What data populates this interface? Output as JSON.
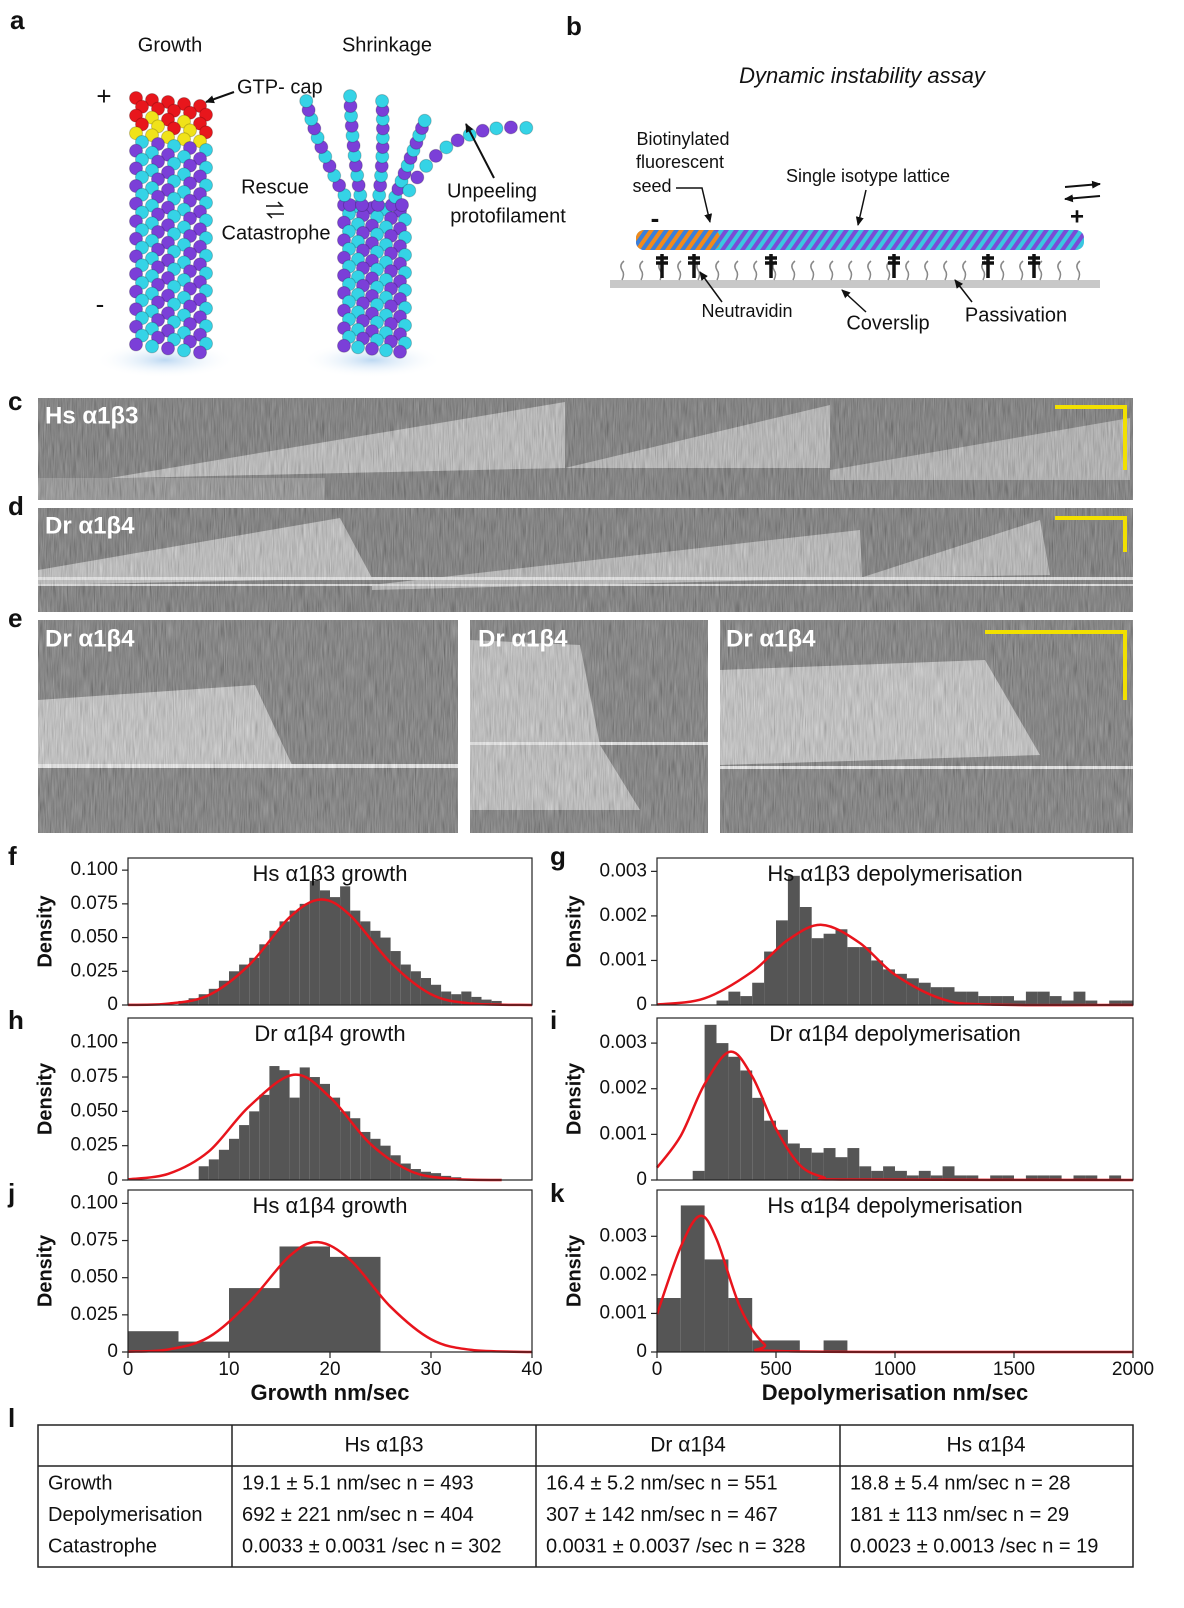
{
  "panel_labels": [
    "a",
    "b",
    "c",
    "d",
    "e",
    "f",
    "g",
    "h",
    "i",
    "j",
    "k",
    "l"
  ],
  "diagram_a": {
    "growth": "Growth",
    "shrinkage": "Shrinkage",
    "plus": "+",
    "minus": "-",
    "gtp_cap": "GTP- cap",
    "rescue": "Rescue",
    "catastrophe": "Catastrophe",
    "unpeeling": "Unpeeling",
    "protofilament": "protofilament"
  },
  "diagram_b": {
    "title": "Dynamic instability assay",
    "seed_label": [
      "Biotinylated",
      "fluorescent",
      "seed"
    ],
    "lattice": "Single isotype lattice",
    "minus": "-",
    "plus": "+",
    "neutravidin": "Neutravidin",
    "coverslip": "Coverslip",
    "passivation": "Passivation"
  },
  "kymographs": [
    "Hs α1β3",
    "Dr α1β4",
    "Dr α1β4",
    "Dr α1β4",
    "Dr α1β4"
  ],
  "chart_data": [
    {
      "type": "histogram",
      "title": "Hs α1β3 growth",
      "ylabel": "Density",
      "color": "#555555",
      "xlim": [
        0,
        40
      ],
      "ylim": [
        0,
        0.109
      ],
      "yticks": [
        0,
        0.025,
        {
          "value": 0.05,
          "label": "0.050"
        },
        0.075,
        {
          "value": 0.1,
          "label": "0.100"
        }
      ],
      "bins": [
        5,
        6,
        7,
        8,
        9,
        10,
        11,
        12,
        13,
        14,
        15,
        16,
        17,
        18,
        19,
        20,
        21,
        22,
        23,
        24,
        25,
        26,
        27,
        28,
        29,
        30,
        31,
        32,
        33,
        34,
        35,
        36,
        37
      ],
      "values": [
        0.003,
        0.005,
        0.008,
        0.012,
        0.018,
        0.025,
        0.03,
        0.035,
        0.045,
        0.055,
        0.062,
        0.07,
        0.075,
        0.092,
        0.085,
        0.08,
        0.088,
        0.07,
        0.062,
        0.055,
        0.05,
        0.04,
        0.03,
        0.025,
        0.02,
        0.015,
        0.01,
        0.008,
        0.01,
        0.006,
        0.004,
        0.003
      ],
      "curve": {
        "color": "#e8141c",
        "x": [
          0,
          4,
          8,
          12,
          16,
          19.1,
          22,
          26,
          30,
          34,
          40
        ],
        "values": [
          0.0001,
          0.001,
          0.0073,
          0.0297,
          0.065,
          0.0782,
          0.0665,
          0.0314,
          0.008,
          0.0011,
          0.0
        ]
      }
    },
    {
      "type": "histogram",
      "title": "Hs α1β3 depolymerisation",
      "ylabel": "Density",
      "color": "#555555",
      "xlim": [
        0,
        2000
      ],
      "ylim": [
        0,
        0.0033
      ],
      "yticks": [
        0,
        0.001,
        0.002,
        0.003
      ],
      "bins": [
        250,
        300,
        350,
        400,
        450,
        500,
        550,
        600,
        650,
        700,
        750,
        800,
        850,
        900,
        950,
        1000,
        1050,
        1100,
        1150,
        1200,
        1250,
        1300,
        1350,
        1400,
        1450,
        1500,
        1550,
        1600,
        1650,
        1700,
        1750,
        1800,
        1850,
        1900,
        1950,
        2000
      ],
      "values": [
        0.0001,
        0.0003,
        0.0002,
        0.0005,
        0.0012,
        0.0019,
        0.0029,
        0.0022,
        0.0015,
        0.0016,
        0.0017,
        0.0013,
        0.0013,
        0.001,
        0.0008,
        0.0007,
        0.0006,
        0.0005,
        0.0004,
        0.0004,
        0.0003,
        0.0003,
        0.0002,
        0.0002,
        0.0002,
        0.0001,
        0.0003,
        0.0003,
        0.0002,
        0.0001,
        0.0003,
        0.0001,
        0,
        0.0001,
        0.0001
      ],
      "curve": {
        "color": "#e8141c",
        "x": [
          0,
          200,
          400,
          550,
          692,
          850,
          1000,
          1200,
          1400,
          2000
        ],
        "values": [
          1e-05,
          0.00015,
          0.00075,
          0.00146,
          0.0018,
          0.0014,
          0.00068,
          0.00013,
          1e-05,
          0.0
        ]
      }
    },
    {
      "type": "histogram",
      "title": "Dr α1β4 growth",
      "ylabel": "Density",
      "color": "#555555",
      "xlim": [
        0,
        40
      ],
      "ylim": [
        0,
        0.118
      ],
      "yticks": [
        0,
        0.025,
        {
          "value": 0.05,
          "label": "0.050"
        },
        0.075,
        {
          "value": 0.1,
          "label": "0.100"
        }
      ],
      "bins": [
        7,
        8,
        9,
        10,
        11,
        12,
        13,
        14,
        15,
        16,
        17,
        18,
        19,
        20,
        21,
        22,
        23,
        24,
        25,
        26,
        27,
        28,
        29,
        30,
        31,
        32,
        33
      ],
      "values": [
        0.01,
        0.015,
        0.022,
        0.03,
        0.04,
        0.05,
        0.062,
        0.083,
        0.08,
        0.06,
        0.082,
        0.075,
        0.07,
        0.06,
        0.05,
        0.045,
        0.035,
        0.03,
        0.025,
        0.018,
        0.012,
        0.008,
        0.006,
        0.005,
        0.003,
        0.002
      ],
      "curve": {
        "color": "#e8141c",
        "x": [
          0,
          4,
          8,
          12,
          16.4,
          20,
          24,
          28,
          32,
          37
        ],
        "values": [
          0.0005,
          0.0045,
          0.0208,
          0.0536,
          0.0767,
          0.0603,
          0.0263,
          0.0064,
          0.0008,
          0.0
        ]
      }
    },
    {
      "type": "histogram",
      "title": "Dr α1β4 depolymerisation",
      "ylabel": "Density",
      "color": "#555555",
      "xlim": [
        0,
        2000
      ],
      "ylim": [
        0,
        0.00355
      ],
      "yticks": [
        0,
        0.001,
        0.002,
        0.003
      ],
      "bins": [
        150,
        200,
        250,
        300,
        350,
        400,
        450,
        500,
        550,
        600,
        650,
        700,
        750,
        800,
        850,
        900,
        950,
        1000,
        1050,
        1100,
        1150,
        1200,
        1250,
        1300,
        1350,
        1400,
        1450,
        1500,
        1550,
        1600,
        1650,
        1700,
        1750,
        1800,
        1850,
        1900,
        1950
      ],
      "values": [
        0.0002,
        0.0034,
        0.003,
        0.0027,
        0.0024,
        0.0018,
        0.0013,
        0.0011,
        0.0008,
        0.0007,
        0.0006,
        0.0007,
        0.0005,
        0.0007,
        0.0003,
        0.0002,
        0.0003,
        0.0002,
        0.0001,
        0.0002,
        0.0001,
        0.0003,
        0.0001,
        0.0001,
        0,
        0.0001,
        0.0001,
        0,
        0.0001,
        0.0001,
        0.0001,
        0,
        0.0001,
        0.0001,
        0,
        0.0001
      ],
      "curve": {
        "color": "#e8141c",
        "x": [
          0,
          100,
          200,
          307,
          400,
          500,
          600,
          700,
          800,
          2000
        ],
        "values": [
          0.00027,
          0.00097,
          0.0021,
          0.00281,
          0.00227,
          0.00112,
          0.00033,
          6e-05,
          1e-05,
          0.0
        ]
      }
    },
    {
      "type": "histogram",
      "title": "Hs α1β4 growth",
      "ylabel": "Density",
      "xlabel": "Growth nm/sec",
      "color": "#555555",
      "xlim": [
        0,
        40
      ],
      "ylim": [
        0,
        0.109
      ],
      "yticks": [
        0,
        0.025,
        {
          "value": 0.05,
          "label": "0.050"
        },
        0.075,
        {
          "value": 0.1,
          "label": "0.100"
        }
      ],
      "xticks": [
        0,
        10,
        20,
        30,
        40
      ],
      "bins": [
        0,
        5,
        10,
        15,
        20,
        25
      ],
      "values": [
        0.014,
        0.007,
        0.043,
        0.071,
        0.064
      ],
      "curve": {
        "color": "#e8141c",
        "x": [
          0,
          4,
          8,
          12,
          16,
          18.8,
          22,
          26,
          30,
          34,
          40
        ],
        "values": [
          0.0002,
          0.0017,
          0.01,
          0.0335,
          0.0646,
          0.0739,
          0.062,
          0.0304,
          0.0086,
          0.0014,
          0.0
        ]
      }
    },
    {
      "type": "histogram",
      "title": "Hs α1β4 depolymerisation",
      "ylabel": "Density",
      "xlabel": "Depolymerisation nm/sec",
      "color": "#555555",
      "xlim": [
        0,
        2000
      ],
      "ylim": [
        0,
        0.0042
      ],
      "yticks": [
        0,
        0.001,
        0.002,
        0.003
      ],
      "xticks": [
        0,
        500,
        1000,
        1500,
        2000
      ],
      "bins": [
        0,
        100,
        200,
        300,
        400,
        500,
        600,
        700,
        800
      ],
      "values": [
        0.0014,
        0.0038,
        0.0024,
        0.0014,
        0.0003,
        0.0003,
        0,
        0.0003
      ],
      "curve": {
        "color": "#e8141c",
        "x": [
          0,
          100,
          181,
          250,
          350,
          450,
          550,
          2000
        ],
        "values": [
          0.00098,
          0.00273,
          0.00353,
          0.00293,
          0.00115,
          0.00021,
          2e-05,
          0.0
        ]
      }
    }
  ],
  "table": {
    "header": [
      "Hs α1β3",
      "Dr α1β4",
      "Hs α1β4"
    ],
    "rows": [
      [
        "Growth",
        "19.1 ± 5.1 nm/sec n = 493",
        "16.4 ± 5.2 nm/sec n = 551",
        "18.8 ± 5.4 nm/sec n = 28"
      ],
      [
        "Depolymerisation",
        "692 ± 221 nm/sec n = 404",
        "307 ± 142 nm/sec n = 467",
        "181 ± 113 nm/sec n = 29"
      ],
      [
        "Catastrophe",
        "0.0033 ± 0.0031 /sec n = 302",
        "0.0031 ± 0.0037 /sec n = 328",
        "0.0023 ± 0.0013 /sec n = 19"
      ]
    ]
  }
}
